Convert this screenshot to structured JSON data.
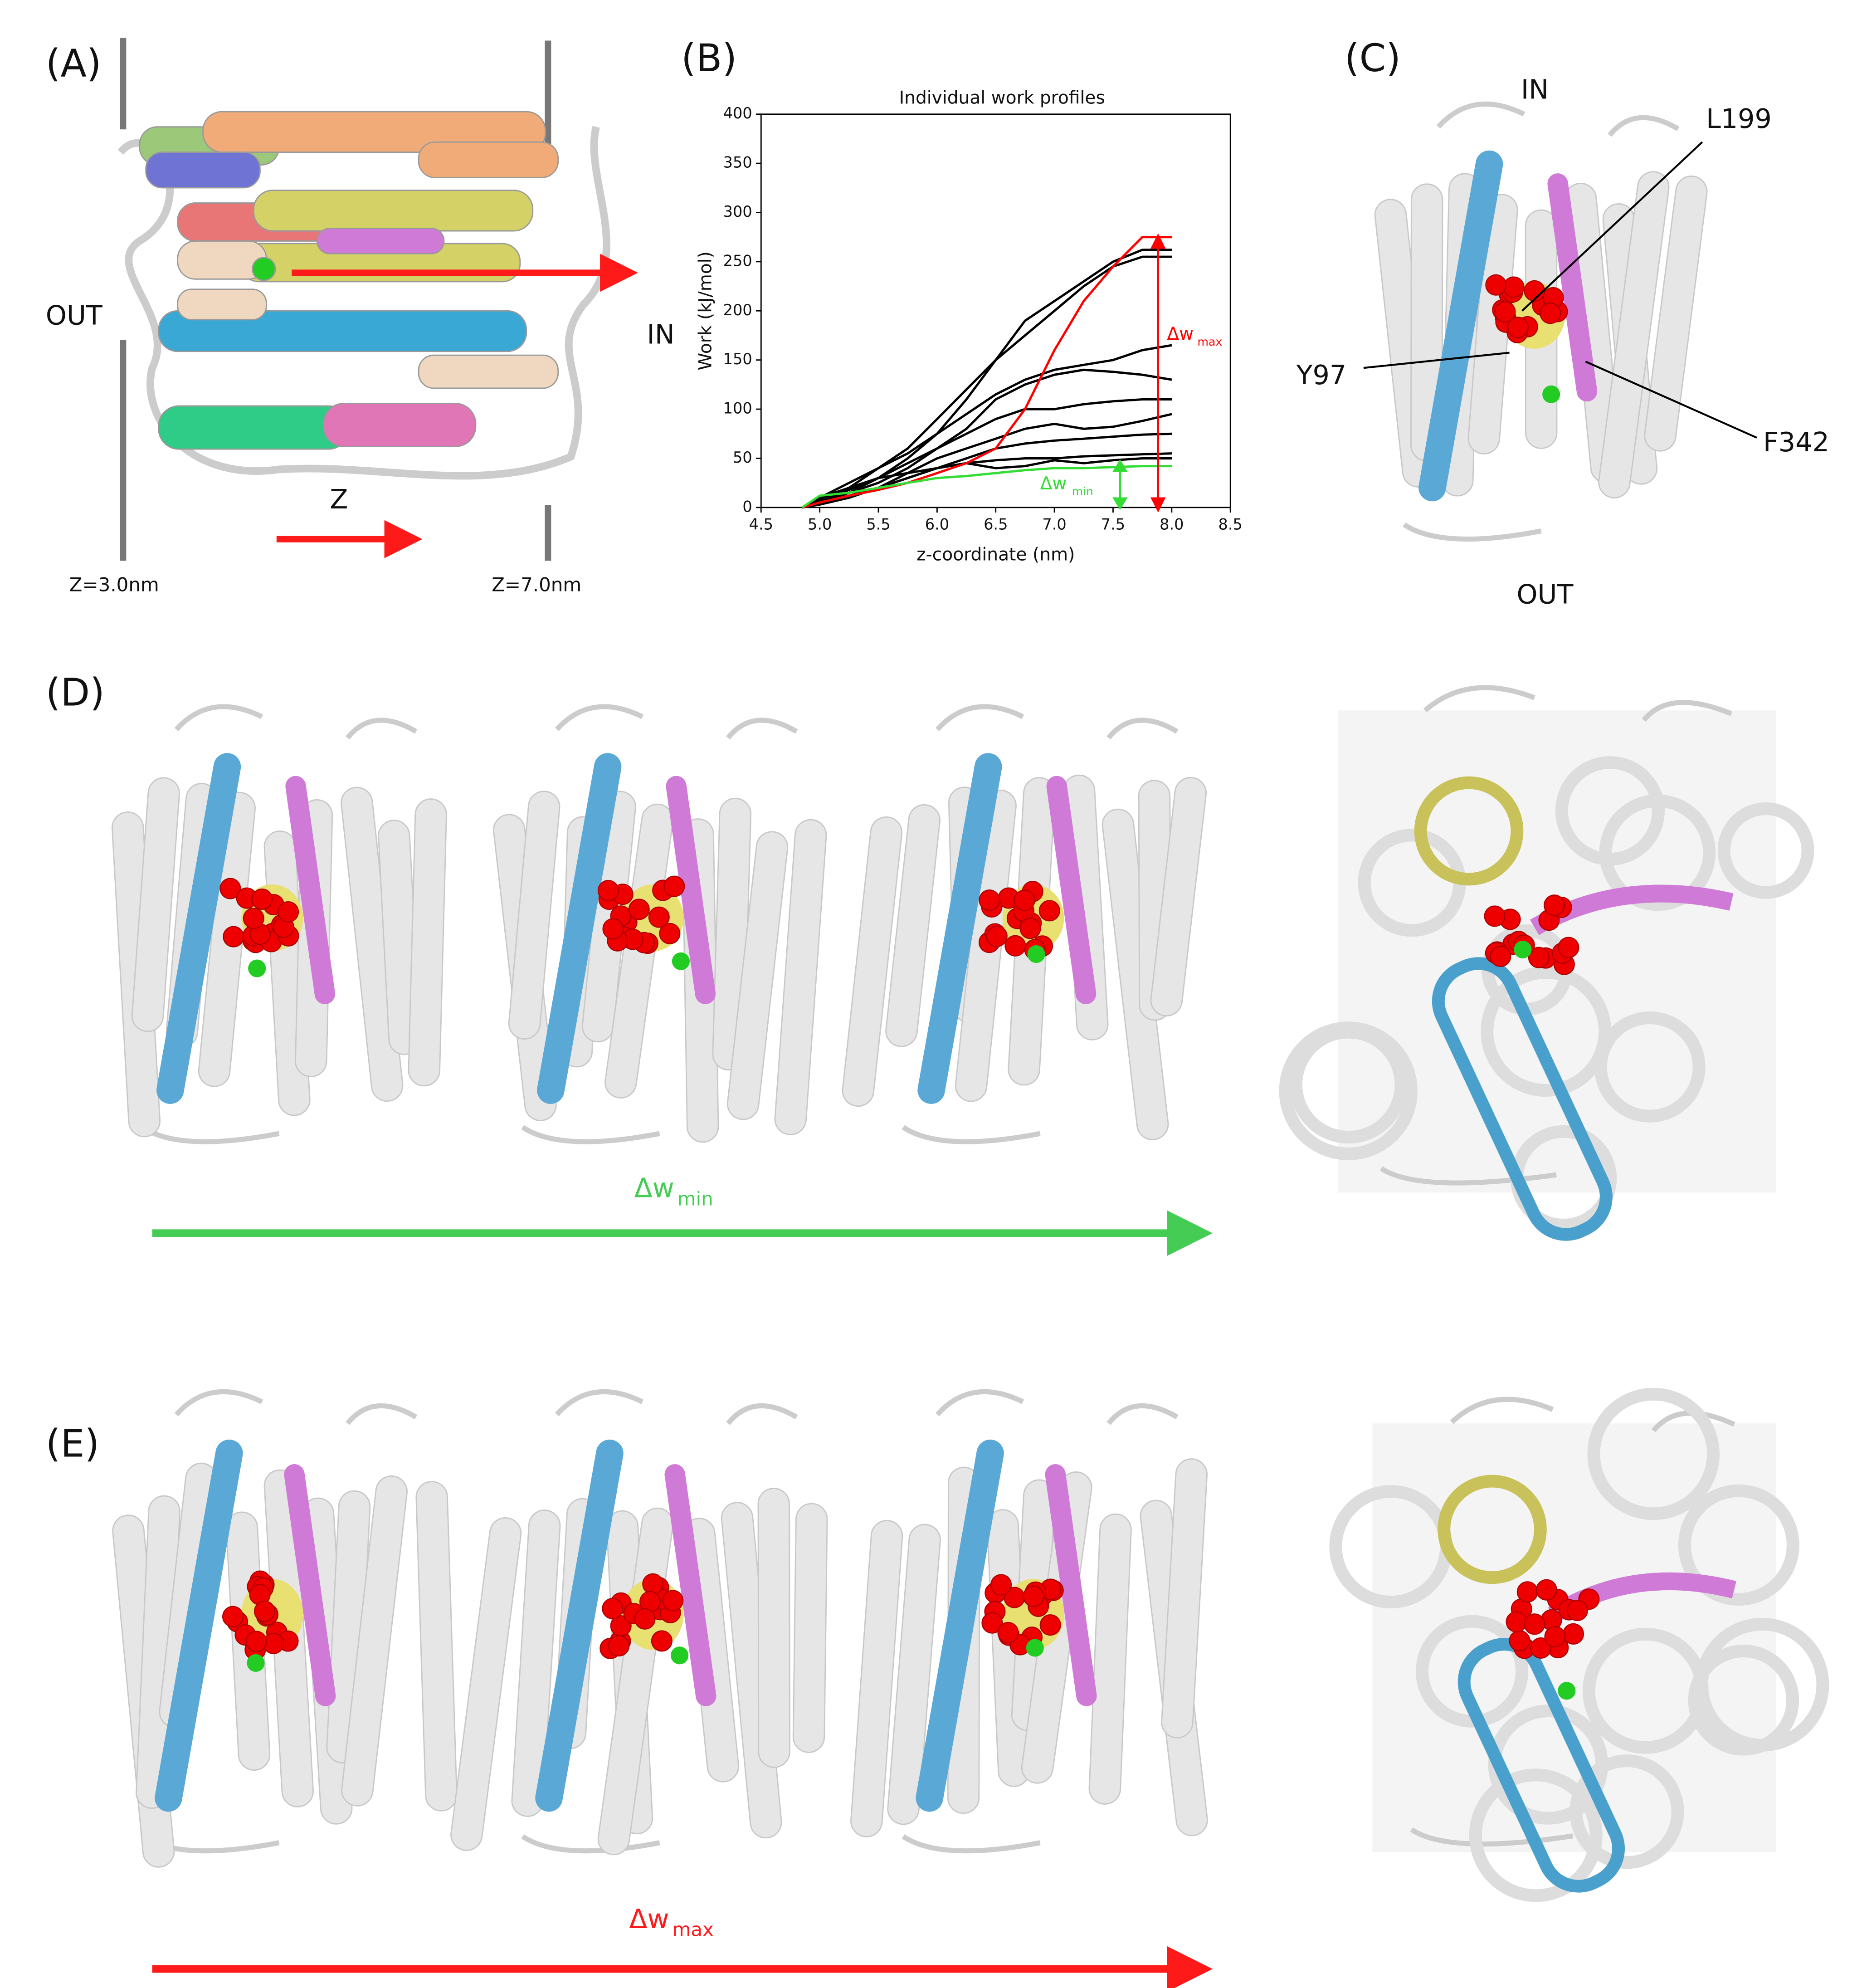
{
  "panels": {
    "a": {
      "label": "(A)",
      "out": "OUT",
      "in": "IN",
      "z": "Z",
      "z_start": "Z=3.0nm",
      "z_end": "Z=7.0nm"
    },
    "b": {
      "label": "(B)"
    },
    "c": {
      "label": "(C)",
      "in": "IN",
      "out": "OUT",
      "residues": [
        "L199",
        "Y97",
        "F342"
      ]
    },
    "d": {
      "label": "(D)",
      "arrow": {
        "text": "Δw",
        "sub": "min"
      }
    },
    "e": {
      "label": "(E)",
      "arrow": {
        "text": "Δw",
        "sub": "max"
      }
    }
  },
  "chart_data": {
    "type": "line",
    "title": "Individual work profiles",
    "x_label": "z-coordinate (nm)",
    "y_label": "Work (kJ/mol)",
    "x": [
      4.85,
      5.0,
      5.25,
      5.5,
      5.75,
      6.0,
      6.25,
      6.5,
      6.75,
      7.0,
      7.25,
      7.5,
      7.75,
      8.0
    ],
    "series": [
      {
        "color": "#000000",
        "values": [
          0,
          5,
          15,
          30,
          50,
          75,
          110,
          150,
          190,
          210,
          230,
          250,
          262,
          262
        ]
      },
      {
        "color": "#000000",
        "values": [
          0,
          8,
          20,
          40,
          60,
          90,
          120,
          150,
          175,
          200,
          225,
          245,
          255,
          255
        ]
      },
      {
        "color": "#000000",
        "values": [
          0,
          10,
          25,
          40,
          55,
          75,
          95,
          115,
          130,
          140,
          145,
          150,
          160,
          165
        ]
      },
      {
        "color": "#000000",
        "values": [
          0,
          5,
          15,
          25,
          40,
          60,
          80,
          110,
          125,
          135,
          140,
          138,
          135,
          130
        ]
      },
      {
        "color": "#000000",
        "values": [
          0,
          6,
          18,
          30,
          45,
          60,
          75,
          90,
          100,
          100,
          105,
          108,
          110,
          110
        ]
      },
      {
        "color": "#000000",
        "values": [
          0,
          4,
          10,
          20,
          35,
          50,
          60,
          70,
          80,
          85,
          80,
          82,
          88,
          95
        ]
      },
      {
        "color": "#000000",
        "values": [
          0,
          3,
          10,
          20,
          30,
          40,
          50,
          60,
          65,
          68,
          70,
          72,
          74,
          75
        ]
      },
      {
        "color": "#000000",
        "values": [
          0,
          5,
          12,
          20,
          30,
          40,
          45,
          48,
          50,
          50,
          52,
          53,
          54,
          55
        ]
      },
      {
        "color": "#000000",
        "values": [
          0,
          10,
          20,
          30,
          35,
          40,
          45,
          40,
          42,
          48,
          45,
          48,
          50,
          50
        ]
      },
      {
        "color": "#ff0000",
        "values": [
          0,
          5,
          12,
          18,
          25,
          35,
          45,
          60,
          100,
          160,
          210,
          245,
          275,
          275
        ]
      },
      {
        "color": "#33dd33",
        "values": [
          0,
          12,
          15,
          20,
          25,
          30,
          32,
          35,
          38,
          40,
          40,
          41,
          42,
          42
        ]
      }
    ],
    "xlim": [
      4.5,
      8.5
    ],
    "xticks": [
      4.5,
      {
        "value": 5,
        "label": "5.0"
      },
      5.5,
      {
        "value": 6,
        "label": "6.0"
      },
      6.5,
      {
        "value": 7,
        "label": "7.0"
      },
      7.5,
      {
        "value": 8,
        "label": "8.0"
      },
      8.5
    ],
    "ylim": [
      0,
      400
    ],
    "yticks": [
      0,
      50,
      100,
      150,
      200,
      250,
      300,
      350,
      400
    ],
    "annotations": [
      {
        "text": "Δw",
        "sub": "max",
        "color": "#ff0000"
      },
      {
        "text": "Δw",
        "sub": "min",
        "color": "#33dd33"
      }
    ]
  }
}
